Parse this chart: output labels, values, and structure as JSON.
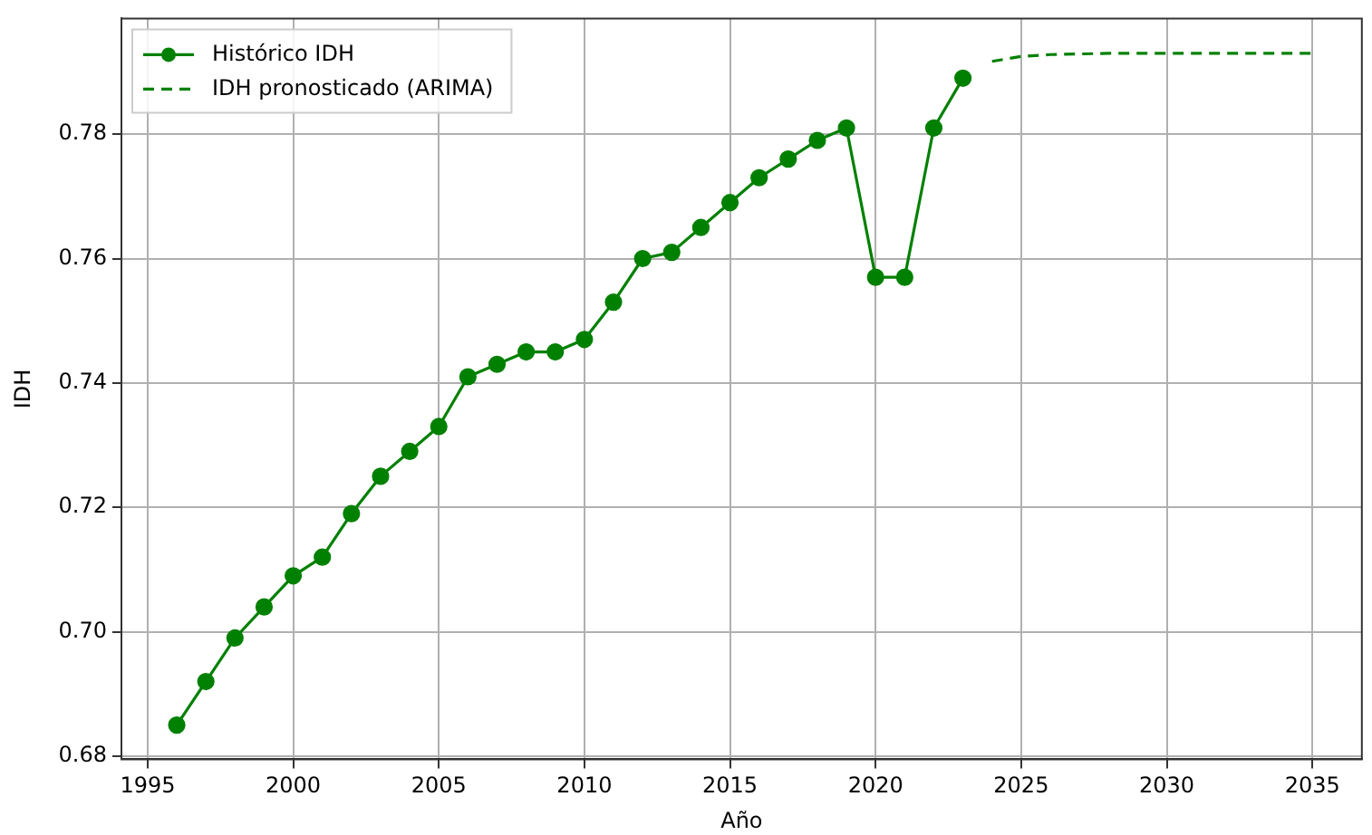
{
  "chart_data": {
    "type": "line",
    "xlabel": "Año",
    "ylabel": "IDH",
    "xlim": [
      1994.1,
      2036.7
    ],
    "ylim": [
      0.6795,
      0.7986
    ],
    "xticks": [
      1995,
      2000,
      2005,
      2010,
      2015,
      2020,
      2025,
      2030,
      2035
    ],
    "yticks": [
      {
        "value": 0.68,
        "label": "0.68"
      },
      {
        "value": 0.7,
        "label": "0.70"
      },
      {
        "value": 0.72,
        "label": "0.72"
      },
      {
        "value": 0.74,
        "label": "0.74"
      },
      {
        "value": 0.76,
        "label": "0.76"
      },
      {
        "value": 0.78,
        "label": "0.78"
      }
    ],
    "grid": true,
    "legend": "top left",
    "series": [
      {
        "name": "Histórico IDH",
        "color": "#008000",
        "marker": "circle",
        "line_style": "solid",
        "x": [
          1996,
          1997,
          1998,
          1999,
          2000,
          2001,
          2002,
          2003,
          2004,
          2005,
          2006,
          2007,
          2008,
          2009,
          2010,
          2011,
          2012,
          2013,
          2014,
          2015,
          2016,
          2017,
          2018,
          2019,
          2020,
          2021,
          2022,
          2023
        ],
        "values": [
          0.685,
          0.692,
          0.699,
          0.704,
          0.709,
          0.712,
          0.719,
          0.725,
          0.729,
          0.733,
          0.741,
          0.743,
          0.745,
          0.745,
          0.747,
          0.753,
          0.76,
          0.761,
          0.765,
          0.769,
          0.773,
          0.776,
          0.779,
          0.781,
          0.757,
          0.757,
          0.781,
          0.789
        ]
      },
      {
        "name": "IDH pronosticado (ARIMA)",
        "color": "#008000",
        "marker": "none",
        "line_style": "dashed",
        "x": [
          2024,
          2025,
          2026,
          2027,
          2028,
          2029,
          2030,
          2031,
          2032,
          2033,
          2034,
          2035
        ],
        "values": [
          0.7917,
          0.7925,
          0.7928,
          0.7929,
          0.793,
          0.793,
          0.793,
          0.793,
          0.793,
          0.793,
          0.793,
          0.793
        ]
      }
    ]
  }
}
